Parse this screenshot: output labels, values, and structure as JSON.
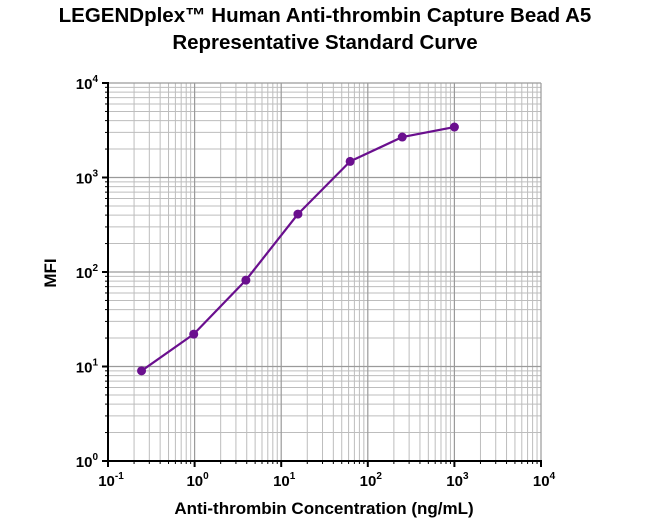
{
  "chart_data": {
    "type": "line",
    "title": "LEGENDplex™ Human Anti-thrombin Capture Bead A5",
    "subtitle": "Representative Standard Curve",
    "xlabel": "Anti-thrombin Concentration (ng/mL)",
    "ylabel": "MFI",
    "x_scale": "log10",
    "y_scale": "log10",
    "xlim": [
      0.1,
      10000
    ],
    "ylim": [
      1,
      10000
    ],
    "grid": true,
    "x_ticks": [
      {
        "base": "10",
        "exp": "-1"
      },
      {
        "base": "10",
        "exp": "0"
      },
      {
        "base": "10",
        "exp": "1"
      },
      {
        "base": "10",
        "exp": "2"
      },
      {
        "base": "10",
        "exp": "3"
      },
      {
        "base": "10",
        "exp": "4"
      }
    ],
    "y_ticks": [
      {
        "base": "10",
        "exp": "0"
      },
      {
        "base": "10",
        "exp": "1"
      },
      {
        "base": "10",
        "exp": "2"
      },
      {
        "base": "10",
        "exp": "3"
      },
      {
        "base": "10",
        "exp": "4"
      }
    ],
    "series": [
      {
        "color": "#6a0f8e",
        "x": [
          0.244,
          0.977,
          3.91,
          15.6,
          62.5,
          250,
          1000
        ],
        "y": [
          9,
          22,
          82,
          410,
          1480,
          2680,
          3420
        ]
      }
    ]
  }
}
